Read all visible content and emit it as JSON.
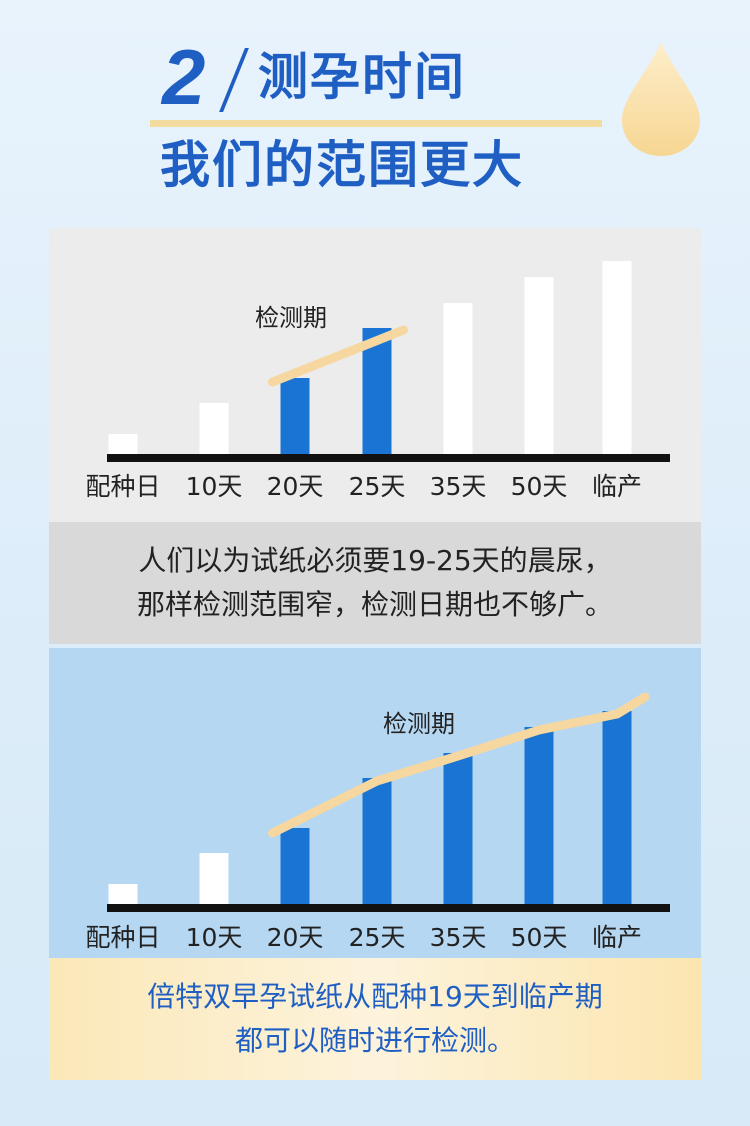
{
  "header": {
    "number": "2",
    "title_line1": "测孕时间",
    "title_line2": "我们的范围更大"
  },
  "charts": [
    {
      "type": "bar",
      "categories": [
        "配种日",
        "10天",
        "20天",
        "25天",
        "35天",
        "50天",
        "临产"
      ],
      "values": [
        20,
        51,
        76,
        126,
        151,
        177,
        193
      ],
      "highlighted": [
        false,
        false,
        true,
        true,
        false,
        false,
        false
      ],
      "annotation": "检测期",
      "highlight_color": "#1a74d4",
      "normal_color": "#ffffff",
      "trend_color": "#f6d7a0"
    },
    {
      "type": "bar",
      "categories": [
        "配种日",
        "10天",
        "20天",
        "25天",
        "35天",
        "50天",
        "临产"
      ],
      "values": [
        20,
        51,
        76,
        126,
        151,
        177,
        193
      ],
      "highlighted": [
        false,
        false,
        true,
        true,
        true,
        true,
        true
      ],
      "annotation": "检测期",
      "highlight_color": "#1a74d4",
      "normal_color": "#ffffff",
      "trend_color": "#f6d7a0"
    }
  ],
  "caption1": {
    "line1": "人们以为试纸必须要19-25天的晨尿，",
    "line2": "那样检测范围窄，检测日期也不够广。"
  },
  "caption2": {
    "line1": "倍特双早孕试纸从配种19天到临产期",
    "line2": "都可以随时进行检测。"
  }
}
